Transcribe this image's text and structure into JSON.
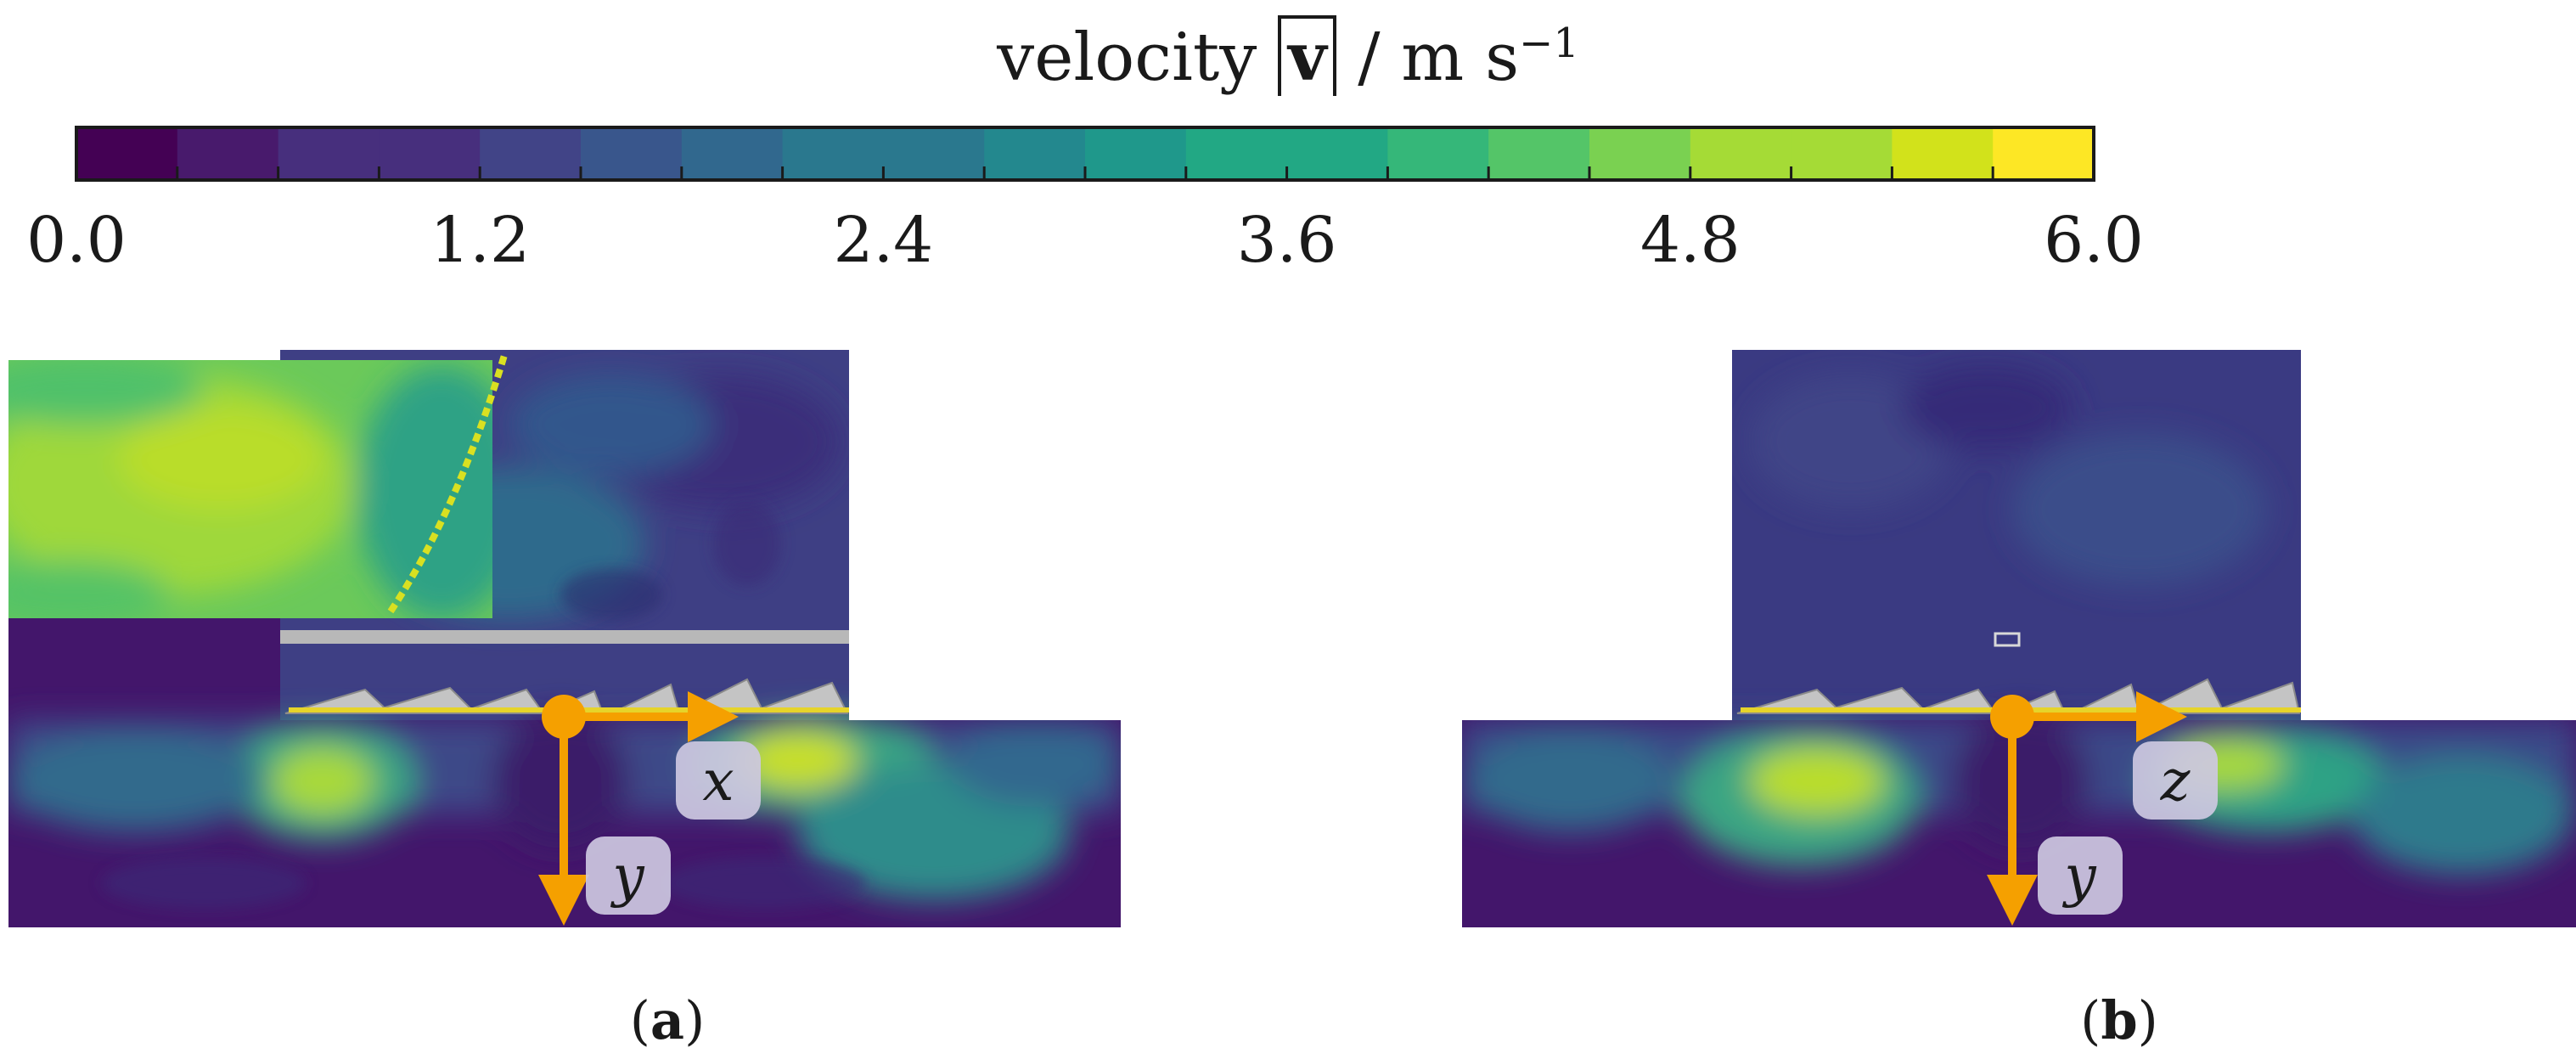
{
  "colorbar": {
    "title_prefix": "velocity",
    "title_symbol": "v",
    "title_unit": "/ m s",
    "title_exponent": "−1",
    "ticks": [
      "0.0",
      "1.2",
      "2.4",
      "3.6",
      "4.8",
      "6.0"
    ],
    "min": 0.0,
    "max": 6.0,
    "levels": 20,
    "colors": [
      "#440154",
      "#481a6c",
      "#472f7d",
      "#414487",
      "#39568c",
      "#31688e",
      "#2a788e",
      "#23888e",
      "#1f988b",
      "#22a884",
      "#35b779",
      "#54c568",
      "#7ad151",
      "#a5db36",
      "#d2e21b",
      "#fde725"
    ]
  },
  "panels": [
    {
      "label": "a",
      "axis_h": "x",
      "axis_v": "y"
    },
    {
      "label": "b",
      "axis_h": "z",
      "axis_v": "y"
    }
  ],
  "colors": {
    "axis_orange": "#F5A000",
    "structure_gray": "#B8B8B8",
    "background_field": "#43166b"
  }
}
